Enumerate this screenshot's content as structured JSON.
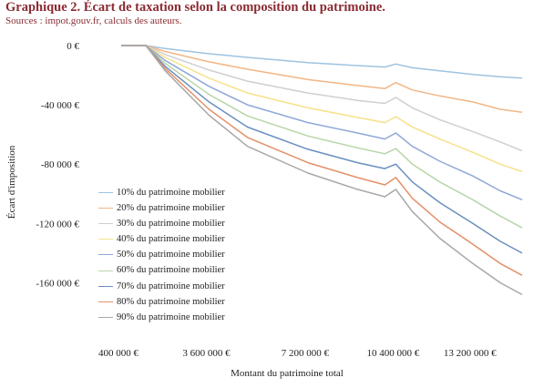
{
  "title": "Graphique 2. Écart de taxation selon la composition du patrimoine.",
  "subtitle": "Sources : impot.gouv.fr, calculs des auteurs.",
  "chart_data": {
    "type": "line",
    "title": "",
    "xlabel": "Montant du patrimoine total",
    "ylabel": "Écart d'imposition",
    "x_tick_labels": [
      "400 000 €",
      "3 600 000 €",
      "7 200 000 €",
      "10 400 000 €",
      "13 200 000 €"
    ],
    "x_ticks": [
      400000,
      3600000,
      7200000,
      10400000,
      13200000
    ],
    "y_tick_labels": [
      "0 €",
      "-40 000 €",
      "-80 000 €",
      "-120 000 €",
      "-160 000 €"
    ],
    "y_ticks": [
      0,
      -40000,
      -80000,
      -120000,
      -160000
    ],
    "xlim": [
      400000,
      15000000
    ],
    "ylim": [
      -180000,
      0
    ],
    "grid": false,
    "legend_position": "bottom-left",
    "x": [
      400000,
      1300000,
      2000000,
      3600000,
      5000000,
      7200000,
      9000000,
      10000000,
      10400000,
      11000000,
      12000000,
      13200000,
      14200000,
      15000000
    ],
    "series": [
      {
        "name": "10% du patrimoine mobilier",
        "color": "#9ec3e0",
        "values": [
          0,
          0,
          -2000,
          -5500,
          -8000,
          -11500,
          -13500,
          -14500,
          -12500,
          -15000,
          -17000,
          -19500,
          -21000,
          -22000
        ]
      },
      {
        "name": "20% du patrimoine mobilier",
        "color": "#f2b685",
        "values": [
          0,
          0,
          -4000,
          -11000,
          -16000,
          -23000,
          -27000,
          -29000,
          -25000,
          -30000,
          -34000,
          -38000,
          -43000,
          -45000
        ]
      },
      {
        "name": "30% du patrimoine mobilier",
        "color": "#cfcfcf",
        "values": [
          0,
          0,
          -6000,
          -16500,
          -24000,
          -32000,
          -37000,
          -39000,
          -35000,
          -42000,
          -50000,
          -58000,
          -65000,
          -71000
        ]
      },
      {
        "name": "40% du patrimoine mobilier",
        "color": "#f7e18a",
        "values": [
          0,
          0,
          -8000,
          -22000,
          -32000,
          -42000,
          -48500,
          -52000,
          -48000,
          -55000,
          -63000,
          -72000,
          -80000,
          -85000
        ]
      },
      {
        "name": "50% du patrimoine mobilier",
        "color": "#8ea8d8",
        "values": [
          0,
          0,
          -10000,
          -27500,
          -40000,
          -52000,
          -59000,
          -63000,
          -59000,
          -68000,
          -78000,
          -88000,
          -98000,
          -104000
        ]
      },
      {
        "name": "60% du patrimoine mobilier",
        "color": "#b8d5a8",
        "values": [
          0,
          0,
          -12000,
          -33000,
          -47500,
          -61000,
          -69000,
          -73000,
          -69500,
          -80000,
          -92000,
          -104000,
          -115000,
          -123000
        ]
      },
      {
        "name": "70% du patrimoine mobilier",
        "color": "#6a8fbf",
        "values": [
          0,
          0,
          -14000,
          -38000,
          -55000,
          -70000,
          -79000,
          -83000,
          -80000,
          -92000,
          -106000,
          -120000,
          -132000,
          -140000
        ]
      },
      {
        "name": "80% du patrimoine mobilier",
        "color": "#e39068",
        "values": [
          0,
          0,
          -15500,
          -43000,
          -62000,
          -79000,
          -89000,
          -94000,
          -89000,
          -103000,
          -119000,
          -134000,
          -147000,
          -155000
        ]
      },
      {
        "name": "90% du patrimoine mobilier",
        "color": "#a8a8a8",
        "values": [
          0,
          0,
          -17000,
          -47000,
          -68000,
          -86000,
          -97000,
          -102000,
          -97000,
          -112000,
          -130000,
          -147000,
          -160000,
          -168000
        ]
      }
    ]
  }
}
